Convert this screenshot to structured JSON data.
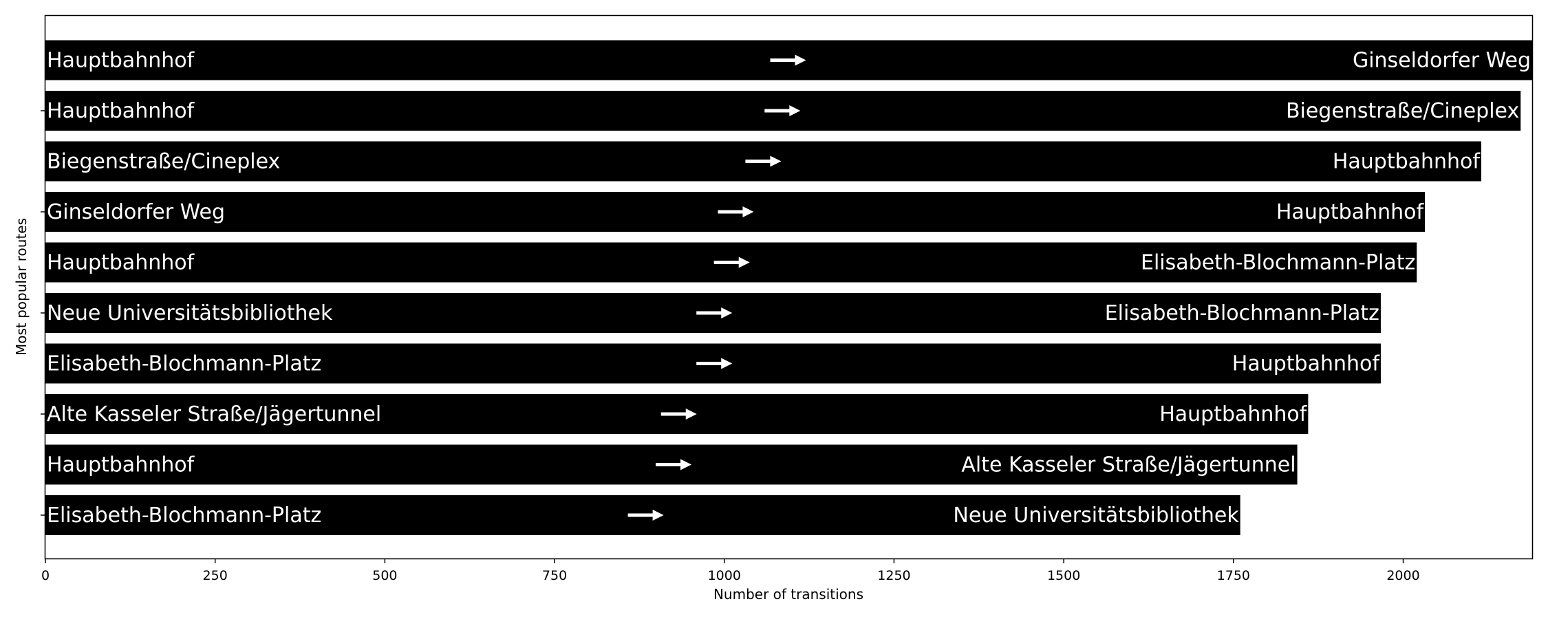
{
  "chart_data": {
    "type": "bar",
    "orientation": "horizontal",
    "xlabel": "Number of transitions",
    "ylabel": "Most popular routes",
    "xlim": [
      0,
      2190
    ],
    "xticks": [
      0,
      250,
      500,
      750,
      1000,
      1250,
      1500,
      1750,
      2000
    ],
    "grid": false,
    "bar_color": "#000000",
    "label_color": "#ffffff",
    "routes": [
      {
        "from": "Hauptbahnhof",
        "to": "Ginseldorfer Weg",
        "value": 2190
      },
      {
        "from": "Hauptbahnhof",
        "to": "Biegenstraße/Cineplex",
        "value": 2173
      },
      {
        "from": "Biegenstraße/Cineplex",
        "to": "Hauptbahnhof",
        "value": 2115
      },
      {
        "from": "Ginseldorfer Weg",
        "to": "Hauptbahnhof",
        "value": 2032
      },
      {
        "from": "Hauptbahnhof",
        "to": "Elisabeth-Blochmann-Platz",
        "value": 2020
      },
      {
        "from": "Neue Universitätsbibliothek",
        "to": "Elisabeth-Blochmann-Platz",
        "value": 1967
      },
      {
        "from": "Elisabeth-Blochmann-Platz",
        "to": "Hauptbahnhof",
        "value": 1967
      },
      {
        "from": "Alte Kasseler Straße/Jägertunnel",
        "to": "Hauptbahnhof",
        "value": 1860
      },
      {
        "from": "Hauptbahnhof",
        "to": "Alte Kasseler Straße/Jägertunnel",
        "value": 1844
      },
      {
        "from": "Elisabeth-Blochmann-Platz",
        "to": "Neue Universitätsbibliothek",
        "value": 1760
      }
    ]
  }
}
